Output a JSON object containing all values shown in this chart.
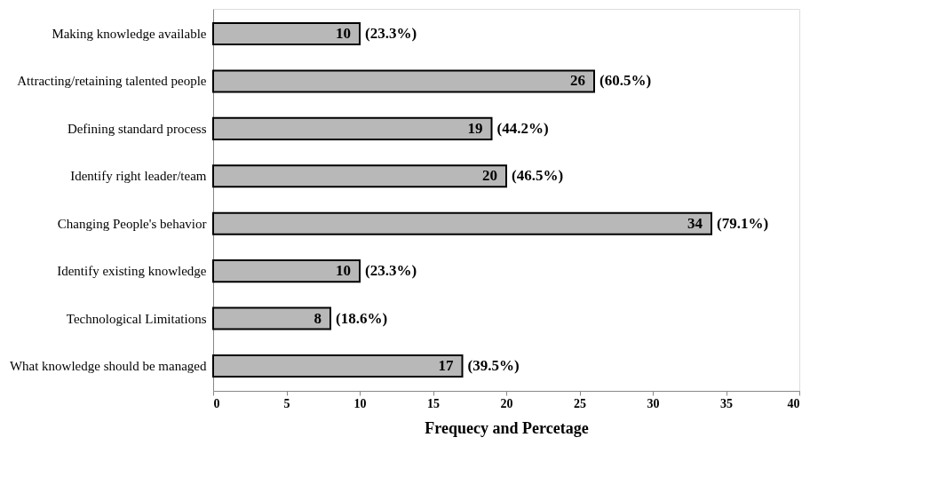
{
  "chart_data": {
    "type": "bar",
    "orientation": "horizontal",
    "xlabel": "Frequecy and Percetage",
    "categories": [
      "Making knowledge available",
      "Attracting/retaining talented people",
      "Defining standard process",
      "Identify right leader/team",
      "Changing People's behavior",
      "Identify existing knowledge",
      "Technological Limitations",
      "What knowledge should be managed"
    ],
    "values": [
      10,
      26,
      19,
      20,
      34,
      10,
      8,
      17
    ],
    "color": "#b8b8b8",
    "data_labels": true,
    "xlim": [
      0,
      40
    ],
    "xticks": [
      0,
      5,
      10,
      15,
      20,
      25,
      30,
      35,
      40
    ],
    "grid": false,
    "annotations": [
      {
        "text": "(23.3%)",
        "x": 10,
        "y": "Making knowledge available"
      },
      {
        "text": "(60.5%)",
        "x": 26,
        "y": "Attracting/retaining talented people"
      },
      {
        "text": "(44.2%)",
        "x": 19,
        "y": "Defining standard process"
      },
      {
        "text": "(46.5%)",
        "x": 20,
        "y": "Identify right leader/team"
      },
      {
        "text": "(79.1%)",
        "x": 34,
        "y": "Changing People's behavior"
      },
      {
        "text": "(23.3%)",
        "x": 10,
        "y": "Identify existing knowledge"
      },
      {
        "text": "(18.6%)",
        "x": 8,
        "y": "Technological Limitations"
      },
      {
        "text": "(39.5%)",
        "x": 17,
        "y": "What knowledge should be managed"
      }
    ]
  }
}
